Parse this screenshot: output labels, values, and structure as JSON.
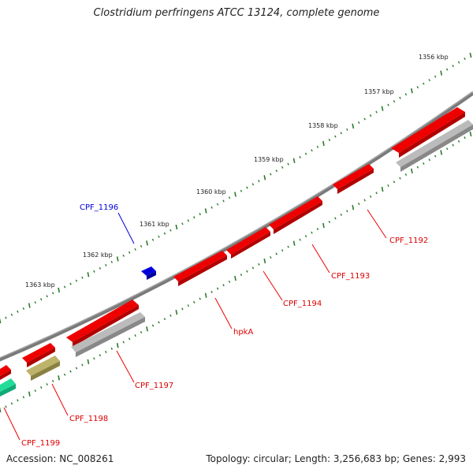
{
  "title": "Clostridium perfringens ATCC 13124, complete genome",
  "footer": {
    "accession": "Accession: NC_008261",
    "stats": "Topology: circular; Length: 3,256,683 bp; Genes: 2,993"
  },
  "colors": {
    "forward_gene": "#ee0000",
    "reverse_gene": "#bbbbbb",
    "minus_highlight": "#bdb36b",
    "teal_gene": "#22dd99",
    "blue_gene": "#0000dd",
    "backbone": "#808080",
    "ticks": "#2a7a2a"
  },
  "scale_labels": [
    "1356 kbp",
    "1357 kbp",
    "1358 kbp",
    "1359 kbp",
    "1360 kbp",
    "1361 kbp",
    "1362 kbp",
    "1363 kbp"
  ],
  "genes": [
    "CPF_1196",
    "CPF_1192",
    "CPF_1193",
    "CPF_1194",
    "hpkA",
    "CPF_1197",
    "CPF_1198",
    "CPF_1199"
  ]
}
